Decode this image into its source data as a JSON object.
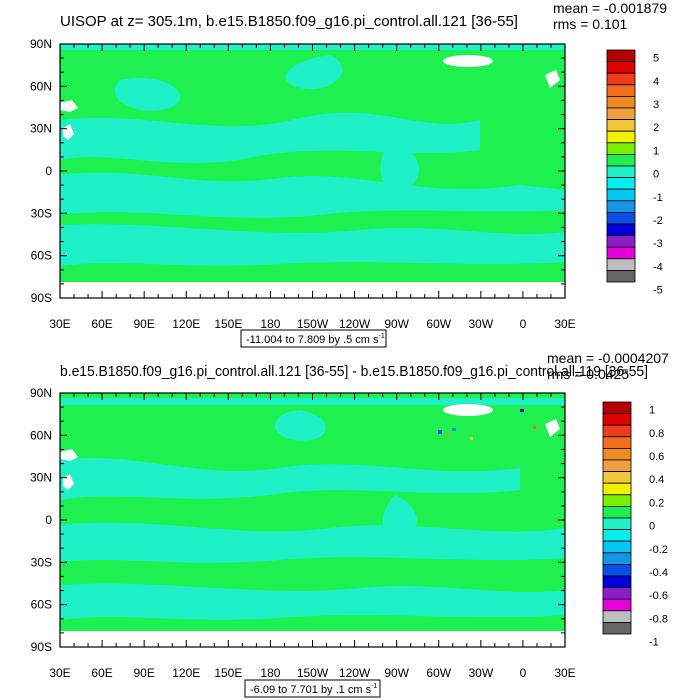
{
  "colors": {
    "land": "#ffffff",
    "ocean_zero": "#1ef050",
    "ocean_neg": "#1ef0c8",
    "axis": "#000000",
    "palette": [
      "#666666",
      "#bebebe",
      "#e600dc",
      "#8c1ec8",
      "#0000dc",
      "#0a50e6",
      "#1496e6",
      "#00c8f0",
      "#00f0f0",
      "#1ef0c8",
      "#1ef050",
      "#78f000",
      "#f0f000",
      "#f0c83c",
      "#f0a03c",
      "#f08c1e",
      "#f06e1e",
      "#f03c1e",
      "#dc0000",
      "#b40000"
    ]
  },
  "chart_data": [
    {
      "type": "heatmap",
      "title": "UISOP at z= 305.1m, b.e15.B1850.f09_g16.pi_control.all.121 [36-55]",
      "stats": {
        "mean": "mean = -0.001879",
        "rms": "rms = 0.101"
      },
      "x_ticks": [
        "30E",
        "60E",
        "90E",
        "120E",
        "150E",
        "180",
        "150W",
        "120W",
        "90W",
        "60W",
        "30W",
        "0",
        "30E"
      ],
      "y_ticks": [
        "90N",
        "60N",
        "30N",
        "0",
        "30S",
        "60S",
        "90S"
      ],
      "xlim": [
        30,
        390
      ],
      "ylim": [
        -90,
        90
      ],
      "range_label": {
        "text": "-11.004 to 7.809 by .5 cm s",
        "sup": "-1"
      },
      "colorbar": {
        "labels": [
          "5",
          "4",
          "3",
          "2",
          "1",
          "0",
          "-1",
          "-2",
          "-3",
          "-4",
          "-5"
        ],
        "levels": [
          -5,
          5
        ],
        "step": 0.5
      }
    },
    {
      "type": "heatmap",
      "title": "b.e15.B1850.f09_g16.pi_control.all.121 [36-55] - b.e15.B1850.f09_g16.pi_control.all.119 [36-55]",
      "stats": {
        "mean": "mean = -0.0004207",
        "rms": "rms = 0.0425"
      },
      "x_ticks": [
        "30E",
        "60E",
        "90E",
        "120E",
        "150E",
        "180",
        "150W",
        "120W",
        "90W",
        "60W",
        "30W",
        "0",
        "30E"
      ],
      "y_ticks": [
        "90N",
        "60N",
        "30N",
        "0",
        "30S",
        "60S",
        "90S"
      ],
      "xlim": [
        30,
        390
      ],
      "ylim": [
        -90,
        90
      ],
      "range_label": {
        "text": "-6.09 to 7.701 by .1 cm s",
        "sup": "-1"
      },
      "colorbar": {
        "labels": [
          "1",
          "0.8",
          "0.6",
          "0.4",
          "0.2",
          "0",
          "-0.2",
          "-0.4",
          "-0.6",
          "-0.8",
          "-1"
        ],
        "levels": [
          -1,
          1
        ],
        "step": 0.1
      }
    }
  ]
}
